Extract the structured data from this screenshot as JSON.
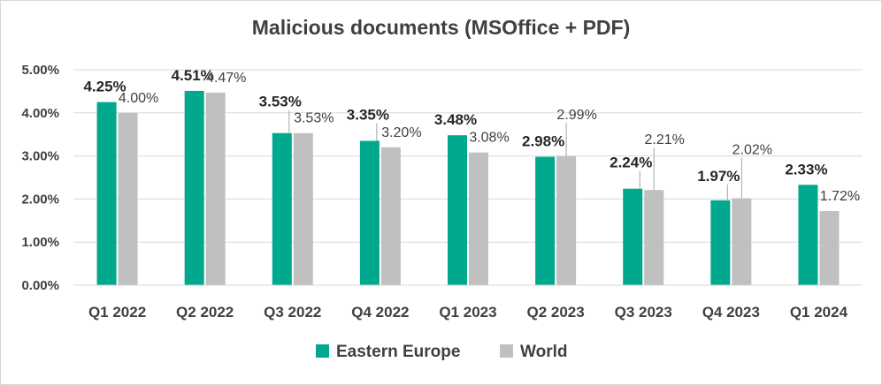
{
  "chart_data": {
    "type": "bar",
    "title": "Malicious documents (MSOffice + PDF)",
    "xlabel": "",
    "ylabel": "",
    "ylim": [
      0,
      5
    ],
    "yticks": [
      "0.00%",
      "1.00%",
      "2.00%",
      "3.00%",
      "4.00%",
      "5.00%"
    ],
    "grid": true,
    "legend_position": "bottom",
    "categories": [
      "Q1 2022",
      "Q2 2022",
      "Q3 2022",
      "Q4 2022",
      "Q1 2023",
      "Q2 2023",
      "Q3 2023",
      "Q4 2023",
      "Q1 2024"
    ],
    "series": [
      {
        "name": "Eastern Europe",
        "color": "#00a88e",
        "values": [
          4.25,
          4.51,
          3.53,
          3.35,
          3.48,
          2.98,
          2.24,
          1.97,
          2.33
        ],
        "labels": [
          "4.25%",
          "4.51%",
          "3.53%",
          "3.35%",
          "3.48%",
          "2.98%",
          "2.24%",
          "1.97%",
          "2.33%"
        ]
      },
      {
        "name": "World",
        "color": "#c0c0c0",
        "values": [
          4.0,
          4.47,
          3.53,
          3.2,
          3.08,
          2.99,
          2.21,
          2.02,
          1.72
        ],
        "labels": [
          "4.00%",
          "4.47%",
          "3.53%",
          "3.20%",
          "3.08%",
          "2.99%",
          "2.21%",
          "2.02%",
          "1.72%"
        ]
      }
    ]
  }
}
